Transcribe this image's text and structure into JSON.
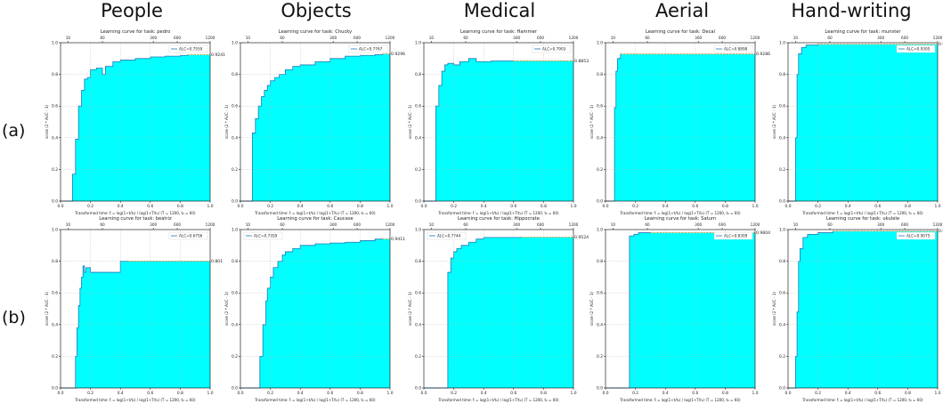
{
  "column_headers": [
    "People",
    "Objects",
    "Medical",
    "Aerial",
    "Hand-writing"
  ],
  "row_labels": [
    "(a)",
    "(b)"
  ],
  "chart_data": [
    {
      "type": "area",
      "row": 0,
      "col": 0,
      "title": "Learning curve for task: pedro",
      "alc_label": "ALC=0.7559",
      "final_label": "0.9241",
      "final_score": 0.9241,
      "xlabel": "Transformed time: t̃ = log(1+t/t₀) / log(1+T/t₀)  (T = 1200,  t₀ = 60)",
      "ylabel": "score (2 * AUC - 1)",
      "xlim": [
        0,
        1
      ],
      "ylim": [
        0,
        1
      ],
      "x_ticks": [
        "0.0",
        "0.2",
        "0.4",
        "0.6",
        "0.8",
        "1.0"
      ],
      "y_ticks": [
        "0.0",
        "0.2",
        "0.4",
        "0.6",
        "0.8",
        "1.0"
      ],
      "top_ticks": [
        "10",
        "60",
        "300",
        "600",
        "1200"
      ],
      "legend_pos": "top-right",
      "steps": [
        [
          0.08,
          0.17
        ],
        [
          0.1,
          0.39
        ],
        [
          0.12,
          0.6
        ],
        [
          0.14,
          0.7
        ],
        [
          0.16,
          0.77
        ],
        [
          0.18,
          0.78
        ],
        [
          0.2,
          0.83
        ],
        [
          0.24,
          0.84
        ],
        [
          0.28,
          0.8
        ],
        [
          0.3,
          0.85
        ],
        [
          0.35,
          0.88
        ],
        [
          0.4,
          0.89
        ],
        [
          0.5,
          0.9
        ],
        [
          0.6,
          0.91
        ],
        [
          0.7,
          0.915
        ],
        [
          0.8,
          0.92
        ],
        [
          0.85,
          0.9241
        ]
      ]
    },
    {
      "type": "area",
      "row": 0,
      "col": 1,
      "title": "Learning curve for task: Chucky",
      "alc_label": "ALC=0.7767",
      "final_label": "0.9296",
      "final_score": 0.9296,
      "xlabel": "Transformed time: t̃ = log(1+t/t₀) / log(1+T/t₀)  (T = 1200,  t₀ = 60)",
      "ylabel": "score (2 * AUC - 1)",
      "xlim": [
        0,
        1
      ],
      "ylim": [
        0,
        1
      ],
      "x_ticks": [
        "0.0",
        "0.2",
        "0.4",
        "0.6",
        "0.8",
        "1.0"
      ],
      "y_ticks": [
        "0.0",
        "0.2",
        "0.4",
        "0.6",
        "0.8",
        "1.0"
      ],
      "top_ticks": [
        "10",
        "60",
        "300",
        "600",
        "1200"
      ],
      "legend_pos": "top-right",
      "steps": [
        [
          0.08,
          0.43
        ],
        [
          0.1,
          0.52
        ],
        [
          0.12,
          0.6
        ],
        [
          0.14,
          0.66
        ],
        [
          0.16,
          0.7
        ],
        [
          0.18,
          0.73
        ],
        [
          0.2,
          0.76
        ],
        [
          0.23,
          0.78
        ],
        [
          0.26,
          0.8
        ],
        [
          0.3,
          0.83
        ],
        [
          0.35,
          0.85
        ],
        [
          0.4,
          0.86
        ],
        [
          0.5,
          0.88
        ],
        [
          0.6,
          0.9
        ],
        [
          0.7,
          0.915
        ],
        [
          0.8,
          0.92
        ],
        [
          0.9,
          0.925
        ],
        [
          0.95,
          0.9296
        ]
      ]
    },
    {
      "type": "area",
      "row": 0,
      "col": 2,
      "title": "Learning curve for task: Hammer",
      "alc_label": "ALC=0.7903",
      "final_label": "0.8853",
      "final_score": 0.8853,
      "xlabel": "Transformed time: t̃ = log(1+t/t₀) / log(1+T/t₀)  (T = 1200,  t₀ = 60)",
      "ylabel": "score (2 * AUC - 1)",
      "xlim": [
        0,
        1
      ],
      "ylim": [
        0,
        1
      ],
      "x_ticks": [
        "0.0",
        "0.2",
        "0.4",
        "0.6",
        "0.8",
        "1.0"
      ],
      "y_ticks": [
        "0.0",
        "0.2",
        "0.4",
        "0.6",
        "0.8",
        "1.0"
      ],
      "top_ticks": [
        "10",
        "60",
        "300",
        "600",
        "1200"
      ],
      "legend_pos": "top-right",
      "steps": [
        [
          0.08,
          0.6
        ],
        [
          0.1,
          0.73
        ],
        [
          0.12,
          0.82
        ],
        [
          0.14,
          0.86
        ],
        [
          0.16,
          0.87
        ],
        [
          0.2,
          0.86
        ],
        [
          0.24,
          0.88
        ],
        [
          0.3,
          0.9
        ],
        [
          0.35,
          0.88
        ],
        [
          0.45,
          0.885
        ],
        [
          0.6,
          0.8853
        ]
      ]
    },
    {
      "type": "area",
      "row": 0,
      "col": 3,
      "title": "Learning curve for task: Decal",
      "alc_label": "ALC=0.8898",
      "final_label": "0.9286",
      "final_score": 0.9286,
      "xlabel": "Transformed time: t̃ = log(1+t/t₀) / log(1+T/t₀)  (T = 1200,  t₀ = 60)",
      "ylabel": "score (2 * AUC - 1)",
      "xlim": [
        0,
        1
      ],
      "ylim": [
        0,
        1
      ],
      "x_ticks": [
        "0.0",
        "0.2",
        "0.4",
        "0.6",
        "0.8",
        "1.0"
      ],
      "y_ticks": [
        "0.0",
        "0.2",
        "0.4",
        "0.6",
        "0.8",
        "1.0"
      ],
      "top_ticks": [
        "10",
        "60",
        "300",
        "600",
        "1200"
      ],
      "legend_pos": "top-right",
      "steps": [
        [
          0.06,
          0.59
        ],
        [
          0.07,
          0.82
        ],
        [
          0.08,
          0.9
        ],
        [
          0.1,
          0.9286
        ]
      ]
    },
    {
      "type": "area",
      "row": 0,
      "col": 4,
      "title": "Learning curve for task: munster",
      "alc_label": "ALC=0.9305",
      "final_label": "0.9903",
      "final_score": 0.9903,
      "xlabel": "Transformed time: t̃ = log(1+t/t₀) / log(1+T/t₀)  (T = 1200,  t₀ = 60)",
      "ylabel": "score (2 * AUC - 1)",
      "xlim": [
        0,
        1
      ],
      "ylim": [
        0,
        1
      ],
      "x_ticks": [
        "0.0",
        "0.2",
        "0.4",
        "0.6",
        "0.8",
        "1.0"
      ],
      "y_ticks": [
        "0.0",
        "0.2",
        "0.4",
        "0.6",
        "0.8",
        "1.0"
      ],
      "top_ticks": [
        "10",
        "60",
        "300",
        "600",
        "1200"
      ],
      "legend_pos": "top-right",
      "steps": [
        [
          0.05,
          0.4
        ],
        [
          0.06,
          0.8
        ],
        [
          0.07,
          0.93
        ],
        [
          0.09,
          0.97
        ],
        [
          0.12,
          0.985
        ],
        [
          0.2,
          0.9903
        ]
      ]
    },
    {
      "type": "area",
      "row": 1,
      "col": 0,
      "title": "Learning curve for task: beatriz",
      "alc_label": "ALC=0.6756",
      "final_label": "0.801",
      "final_score": 0.801,
      "xlabel": "Transformed time: t̃ = log(1+t/t₀) / log(1+T/t₀)  (T = 1200,  t₀ = 60)",
      "ylabel": "score (2 * AUC - 1)",
      "xlim": [
        0,
        1
      ],
      "ylim": [
        0,
        1
      ],
      "x_ticks": [
        "0.0",
        "0.2",
        "0.4",
        "0.6",
        "0.8",
        "1.0"
      ],
      "y_ticks": [
        "0.0",
        "0.2",
        "0.4",
        "0.6",
        "0.8",
        "1.0"
      ],
      "top_ticks": [
        "10",
        "60",
        "300",
        "600",
        "1200"
      ],
      "legend_pos": "top-right",
      "steps": [
        [
          0.1,
          0.2
        ],
        [
          0.11,
          0.38
        ],
        [
          0.12,
          0.52
        ],
        [
          0.13,
          0.63
        ],
        [
          0.14,
          0.7
        ],
        [
          0.15,
          0.77
        ],
        [
          0.16,
          0.73
        ],
        [
          0.17,
          0.76
        ],
        [
          0.2,
          0.73
        ],
        [
          0.4,
          0.8
        ],
        [
          0.45,
          0.801
        ]
      ]
    },
    {
      "type": "area",
      "row": 1,
      "col": 1,
      "title": "Learning curve for task: Caucase",
      "alc_label": "ALC=0.7359",
      "final_label": "0.9411",
      "final_score": 0.9411,
      "xlabel": "Transformed time: t̃ = log(1+t/t₀) / log(1+T/t₀)  (T = 1200,  t₀ = 60)",
      "ylabel": "score (2 * AUC - 1)",
      "xlim": [
        0,
        1
      ],
      "ylim": [
        0,
        1
      ],
      "x_ticks": [
        "0.0",
        "0.2",
        "0.4",
        "0.6",
        "0.8",
        "1.0"
      ],
      "y_ticks": [
        "0.0",
        "0.2",
        "0.4",
        "0.6",
        "0.8",
        "1.0"
      ],
      "top_ticks": [
        "10",
        "60",
        "300",
        "600",
        "1200"
      ],
      "legend_pos": "top-right",
      "steps": [
        [
          0.13,
          0.2
        ],
        [
          0.15,
          0.4
        ],
        [
          0.17,
          0.55
        ],
        [
          0.18,
          0.63
        ],
        [
          0.2,
          0.7
        ],
        [
          0.22,
          0.76
        ],
        [
          0.25,
          0.8
        ],
        [
          0.28,
          0.84
        ],
        [
          0.3,
          0.86
        ],
        [
          0.35,
          0.88
        ],
        [
          0.4,
          0.9
        ],
        [
          0.5,
          0.91
        ],
        [
          0.6,
          0.915
        ],
        [
          0.7,
          0.92
        ],
        [
          0.8,
          0.93
        ],
        [
          0.9,
          0.94
        ],
        [
          0.95,
          0.9411
        ]
      ]
    },
    {
      "type": "area",
      "row": 1,
      "col": 2,
      "title": "Learning curve for task: Hippocrate",
      "alc_label": "ALC=0.7744",
      "final_label": "0.9524",
      "final_score": 0.9524,
      "xlabel": "Transformed time: t̃ = log(1+t/t₀) / log(1+T/t₀)  (T = 1200,  t₀ = 60)",
      "ylabel": "score (2 * AUC - 1)",
      "xlim": [
        0,
        1
      ],
      "ylim": [
        0,
        1
      ],
      "x_ticks": [
        "0.0",
        "0.2",
        "0.4",
        "0.6",
        "0.8",
        "1.0"
      ],
      "y_ticks": [
        "0.0",
        "0.2",
        "0.4",
        "0.6",
        "0.8",
        "1.0"
      ],
      "top_ticks": [
        "10",
        "60",
        "300",
        "600",
        "1200"
      ],
      "legend_pos": "top-right",
      "steps": [
        [
          0.16,
          0.73
        ],
        [
          0.18,
          0.82
        ],
        [
          0.2,
          0.86
        ],
        [
          0.22,
          0.88
        ],
        [
          0.25,
          0.9
        ],
        [
          0.3,
          0.92
        ],
        [
          0.35,
          0.94
        ],
        [
          0.4,
          0.95
        ],
        [
          0.5,
          0.95
        ],
        [
          0.65,
          0.9524
        ]
      ]
    },
    {
      "type": "area",
      "row": 1,
      "col": 3,
      "title": "Learning curve for task: Saturn",
      "alc_label": "ALC=0.8309",
      "final_label": "0.9804",
      "final_score": 0.9804,
      "xlabel": "Transformed time: t̃ = log(1+t/t₀) / log(1+T/t₀)  (T = 1200,  t₀ = 60)",
      "ylabel": "score (2 * AUC - 1)",
      "xlim": [
        0,
        1
      ],
      "ylim": [
        0,
        1
      ],
      "x_ticks": [
        "0.0",
        "0.2",
        "0.4",
        "0.6",
        "0.8",
        "1.0"
      ],
      "y_ticks": [
        "0.0",
        "0.2",
        "0.4",
        "0.6",
        "0.8",
        "1.0"
      ],
      "top_ticks": [
        "10",
        "60",
        "300",
        "600",
        "1200"
      ],
      "legend_pos": "top-right",
      "steps": [
        [
          0.16,
          0.96
        ],
        [
          0.19,
          0.97
        ],
        [
          0.22,
          0.98
        ],
        [
          0.3,
          0.9804
        ]
      ]
    },
    {
      "type": "area",
      "row": 1,
      "col": 4,
      "title": "Learning curve for task: ukulele",
      "alc_label": "ALC=0.9075",
      "final_label": "0.9903",
      "final_score": 0.9903,
      "xlabel": "Transformed time: t̃ = log(1+t/t₀) / log(1+T/t₀)  (T = 1200,  t₀ = 60)",
      "ylabel": "score (2 * AUC - 1)",
      "xlim": [
        0,
        1
      ],
      "ylim": [
        0,
        1
      ],
      "x_ticks": [
        "0.0",
        "0.2",
        "0.4",
        "0.6",
        "0.8",
        "1.0"
      ],
      "y_ticks": [
        "0.0",
        "0.2",
        "0.4",
        "0.6",
        "0.8",
        "1.0"
      ],
      "top_ticks": [
        "10",
        "60",
        "300",
        "600",
        "1200"
      ],
      "legend_pos": "top-right",
      "steps": [
        [
          0.05,
          0.2
        ],
        [
          0.06,
          0.48
        ],
        [
          0.07,
          0.8
        ],
        [
          0.08,
          0.88
        ],
        [
          0.1,
          0.95
        ],
        [
          0.13,
          0.97
        ],
        [
          0.2,
          0.98
        ],
        [
          0.3,
          0.9903
        ]
      ]
    }
  ],
  "colors": {
    "fill": "#00ffff",
    "line": "#1f77b4",
    "dash": "#ff7f0e",
    "grid": "#b0b0b0"
  }
}
